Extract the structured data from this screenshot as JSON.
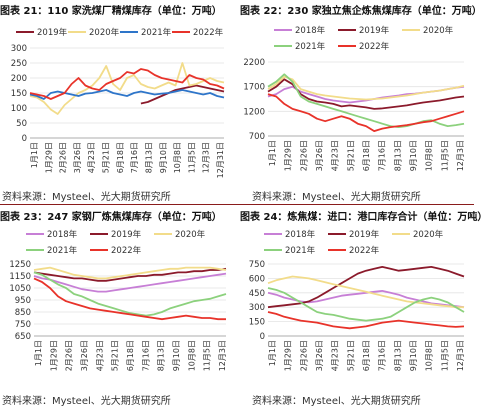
{
  "panels": [
    {
      "title": "图表 21：110 家洗煤厂精煤库存（单位：万吨）",
      "source": "资料来源：Mysteel、光大期货研究所"
    },
    {
      "title": "图表 22：230 家独立焦企炼焦煤库存（单位：万吨）",
      "source": "资料来源：Mysteel、光大期货研究所"
    },
    {
      "title": "图表 23：247 家钢厂炼焦煤库存（单位：万吨）",
      "source": "资料来源：Mysteel、光大期货研究所"
    },
    {
      "title": "图表 24：炼焦煤：进口：港口库存合计（单位：万吨）",
      "source": "资料来源：Mysteel、光大期货研究所"
    }
  ],
  "colors": {
    "2018": "#c77fd6",
    "2019": "#8b1a2b",
    "2020": "#f2dc8a",
    "2021": "#8cd17d",
    "2022": "#e8332a",
    "2021_p21": "#2e75c9",
    "rule": "#8a1c1c"
  },
  "chart_data": [
    {
      "type": "line",
      "ylim": [
        0,
        300
      ],
      "yticks": [
        0,
        50,
        100,
        150,
        200,
        250,
        300
      ],
      "x_ticks": [
        "1月1日",
        "1月29日",
        "2月26日",
        "3月26日",
        "4月23日",
        "5月21日",
        "6月18日",
        "7月16日",
        "8月13日",
        "9月10日",
        "10月8日",
        "11月5日",
        "12月3日",
        "12月31日"
      ],
      "legend": [
        "2019年",
        "2020年",
        "2021年",
        "2022年"
      ],
      "series": [
        {
          "name": "2019年",
          "key": "2019",
          "values": [
            null,
            null,
            null,
            null,
            null,
            null,
            null,
            null,
            null,
            null,
            null,
            null,
            null,
            null,
            null,
            null,
            115,
            120,
            130,
            140,
            150,
            160,
            165,
            170,
            175,
            170,
            165,
            160,
            155
          ]
        },
        {
          "name": "2020年",
          "key": "2020",
          "values": [
            140,
            135,
            120,
            95,
            80,
            110,
            130,
            150,
            160,
            175,
            200,
            240,
            180,
            160,
            200,
            210,
            180,
            170,
            165,
            175,
            185,
            175,
            250,
            175,
            180,
            190,
            200,
            190,
            185
          ]
        },
        {
          "name": "2021年",
          "key": "2021_p21",
          "values": [
            145,
            140,
            130,
            150,
            155,
            150,
            145,
            140,
            148,
            150,
            155,
            160,
            150,
            145,
            140,
            150,
            155,
            150,
            145,
            148,
            150,
            155,
            160,
            155,
            150,
            145,
            150,
            140,
            135
          ]
        },
        {
          "name": "2022年",
          "key": "2022",
          "values": [
            150,
            145,
            140,
            130,
            140,
            150,
            180,
            200,
            175,
            165,
            160,
            180,
            190,
            200,
            220,
            215,
            230,
            225,
            210,
            200,
            195,
            190,
            185,
            210,
            200,
            195,
            180,
            175,
            165
          ]
        }
      ]
    },
    {
      "type": "line",
      "ylim": [
        700,
        2200
      ],
      "yticks": [
        700,
        1200,
        1700,
        2200
      ],
      "x_ticks": [
        "1月1日",
        "1月29日",
        "2月26日",
        "3月26日",
        "4月23日",
        "5月21日",
        "6月18日",
        "7月16日",
        "8月13日",
        "9月10日",
        "10月8日",
        "11月5日",
        "12月3日"
      ],
      "legend": [
        "2018年",
        "2019年",
        "2020年",
        "2021年",
        "2022年"
      ],
      "series": [
        {
          "name": "2018年",
          "key": "2018",
          "values": [
            1500,
            1550,
            1650,
            1700,
            1600,
            1550,
            1500,
            1450,
            1420,
            1400,
            1380,
            1400,
            1420,
            1450,
            1480,
            1500,
            1520,
            1550,
            1560,
            1580,
            1600,
            1620,
            1650,
            1680,
            1700
          ]
        },
        {
          "name": "2019年",
          "key": "2019",
          "values": [
            1600,
            1700,
            1850,
            1750,
            1550,
            1450,
            1400,
            1380,
            1350,
            1300,
            1320,
            1300,
            1280,
            1250,
            1260,
            1280,
            1300,
            1320,
            1350,
            1380,
            1400,
            1420,
            1450,
            1480,
            1500
          ]
        },
        {
          "name": "2020年",
          "key": "2020",
          "values": [
            1650,
            1750,
            1900,
            1850,
            1650,
            1600,
            1550,
            1520,
            1500,
            1480,
            1460,
            1450,
            1440,
            1450,
            1460,
            1480,
            1500,
            1520,
            1550,
            1580,
            1600,
            1620,
            1650,
            1680,
            1720
          ]
        },
        {
          "name": "2021年",
          "key": "2021",
          "values": [
            1700,
            1800,
            1950,
            1800,
            1500,
            1400,
            1350,
            1300,
            1250,
            1200,
            1150,
            1100,
            1050,
            1000,
            950,
            900,
            880,
            900,
            950,
            1000,
            1020,
            950,
            900,
            920,
            950
          ]
        },
        {
          "name": "2022年",
          "key": "2022",
          "values": [
            1550,
            1500,
            1350,
            1250,
            1200,
            1150,
            1050,
            1000,
            1050,
            1100,
            1050,
            950,
            900,
            800,
            850,
            880,
            900,
            920,
            950,
            980,
            1000,
            1050,
            1100,
            1150,
            1200
          ]
        }
      ]
    },
    {
      "type": "line",
      "ylim": [
        650,
        1250
      ],
      "yticks": [
        650,
        750,
        850,
        950,
        1050,
        1150,
        1250
      ],
      "x_ticks": [
        "1月1日",
        "1月29日",
        "2月26日",
        "3月26日",
        "4月23日",
        "5月21日",
        "6月18日",
        "7月16日",
        "8月13日",
        "9月10日",
        "10月8日",
        "11月5日",
        "12月3日"
      ],
      "legend": [
        "2018年",
        "2019年",
        "2020年",
        "2021年",
        "2022年"
      ],
      "series": [
        {
          "name": "2018年",
          "key": "2018",
          "values": [
            1150,
            1130,
            1120,
            1100,
            1080,
            1060,
            1040,
            1030,
            1020,
            1020,
            1030,
            1040,
            1050,
            1060,
            1070,
            1080,
            1090,
            1100,
            1110,
            1120,
            1130,
            1140,
            1150,
            1160,
            1170
          ]
        },
        {
          "name": "2019年",
          "key": "2019",
          "values": [
            1180,
            1170,
            1160,
            1150,
            1140,
            1130,
            1130,
            1120,
            1110,
            1110,
            1120,
            1130,
            1140,
            1150,
            1150,
            1160,
            1160,
            1170,
            1180,
            1180,
            1190,
            1190,
            1200,
            1200,
            1210
          ]
        },
        {
          "name": "2020年",
          "key": "2020",
          "values": [
            1200,
            1210,
            1220,
            1200,
            1180,
            1160,
            1150,
            1140,
            1130,
            1130,
            1140,
            1150,
            1160,
            1170,
            1180,
            1190,
            1200,
            1210,
            1210,
            1220,
            1220,
            1220,
            1220,
            1210,
            1200
          ]
        },
        {
          "name": "2021年",
          "key": "2021",
          "values": [
            1180,
            1160,
            1120,
            1080,
            1050,
            1000,
            980,
            950,
            920,
            900,
            880,
            860,
            840,
            830,
            820,
            830,
            850,
            880,
            900,
            920,
            940,
            950,
            960,
            980,
            1000
          ]
        },
        {
          "name": "2022年",
          "key": "2022",
          "values": [
            1130,
            1100,
            1050,
            980,
            940,
            920,
            900,
            880,
            870,
            860,
            850,
            840,
            830,
            820,
            810,
            800,
            790,
            800,
            810,
            820,
            810,
            800,
            800,
            790,
            790
          ]
        }
      ]
    },
    {
      "type": "line",
      "ylim": [
        0,
        750
      ],
      "yticks": [
        0,
        150,
        300,
        450,
        600,
        750
      ],
      "x_ticks": [
        "1月1日",
        "1月29日",
        "2月26日",
        "3月26日",
        "4月23日",
        "5月21日",
        "6月18日",
        "7月16日",
        "8月13日",
        "9月10日",
        "10月8日",
        "11月5日",
        "12月3日"
      ],
      "legend": [
        "2018年",
        "2019年",
        "2020年",
        "2021年",
        "2022年"
      ],
      "series": [
        {
          "name": "2018年",
          "key": "2018",
          "values": [
            450,
            430,
            400,
            380,
            360,
            350,
            360,
            380,
            400,
            420,
            430,
            440,
            450,
            460,
            470,
            450,
            430,
            400,
            380,
            360,
            340,
            330,
            320,
            310,
            300
          ]
        },
        {
          "name": "2019年",
          "key": "2019",
          "values": [
            300,
            310,
            320,
            330,
            340,
            360,
            400,
            450,
            500,
            550,
            600,
            650,
            680,
            700,
            720,
            700,
            680,
            690,
            700,
            710,
            720,
            700,
            680,
            650,
            620
          ]
        },
        {
          "name": "2020年",
          "key": "2020",
          "values": [
            550,
            580,
            600,
            620,
            610,
            600,
            580,
            560,
            540,
            520,
            500,
            480,
            460,
            440,
            420,
            400,
            380,
            360,
            350,
            340,
            330,
            320,
            310,
            300,
            300
          ]
        },
        {
          "name": "2021年",
          "key": "2021",
          "values": [
            500,
            480,
            450,
            400,
            350,
            300,
            250,
            230,
            220,
            200,
            180,
            170,
            160,
            170,
            180,
            200,
            250,
            300,
            350,
            380,
            400,
            380,
            350,
            300,
            250
          ]
        },
        {
          "name": "2022年",
          "key": "2022",
          "values": [
            250,
            230,
            200,
            180,
            160,
            150,
            140,
            120,
            100,
            90,
            80,
            90,
            100,
            120,
            140,
            150,
            160,
            150,
            140,
            130,
            120,
            110,
            100,
            95,
            100
          ]
        }
      ]
    }
  ]
}
